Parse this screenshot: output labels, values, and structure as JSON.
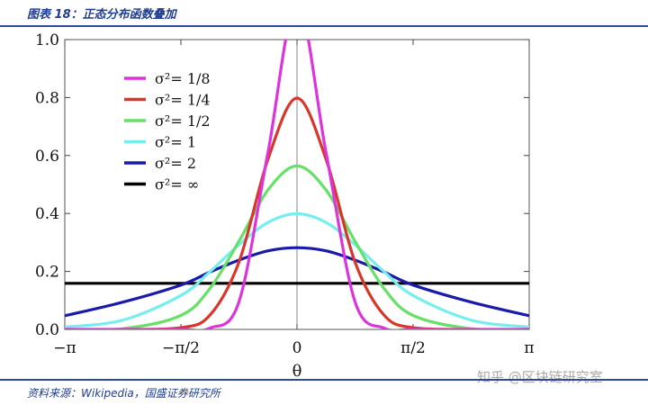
{
  "header": {
    "title": "图表 18：正态分布函数叠加"
  },
  "footer": {
    "source": "资料来源：Wikipedia，国盛证券研究所"
  },
  "watermark": {
    "text": "知乎 @区块链研究室"
  },
  "colors": {
    "header_rule": "#2d4a9a",
    "header_text": "#1f3d8f"
  },
  "chart_data": {
    "type": "line",
    "title": "",
    "xlabel": "θ",
    "ylabel": "",
    "xlim": [
      -3.14159,
      3.14159
    ],
    "ylim": [
      0,
      1.0
    ],
    "x_ticks": [
      {
        "value": -3.14159,
        "label": "−π"
      },
      {
        "value": -1.5708,
        "label": "−π/2"
      },
      {
        "value": 0,
        "label": "0"
      },
      {
        "value": 1.5708,
        "label": "π/2"
      },
      {
        "value": 3.14159,
        "label": "π"
      }
    ],
    "y_ticks": [
      {
        "value": 0.0,
        "label": "0.0"
      },
      {
        "value": 0.2,
        "label": "0.2"
      },
      {
        "value": 0.4,
        "label": "0.4"
      },
      {
        "value": 0.6,
        "label": "0.6"
      },
      {
        "value": 0.8,
        "label": "0.8"
      },
      {
        "value": 1.0,
        "label": "1.0"
      }
    ],
    "grid": false,
    "legend_position": "top-left",
    "x": [
      -3.14159,
      -2.35619,
      -1.5708,
      -1.1781,
      -0.7854,
      -0.3927,
      0,
      0.3927,
      0.7854,
      1.1781,
      1.5708,
      2.35619,
      3.14159
    ],
    "series": [
      {
        "name": "σ²= 1/8",
        "color": "#dd33dd",
        "values": [
          0.0,
          0.0,
          0.0,
          0.0045,
          0.095,
          0.61,
          1.128,
          0.61,
          0.095,
          0.0045,
          0.0,
          0.0,
          0.0
        ]
      },
      {
        "name": "σ²= 1/4",
        "color": "#d9362b",
        "values": [
          0.0,
          0.0,
          0.0059,
          0.049,
          0.232,
          0.587,
          0.798,
          0.587,
          0.232,
          0.049,
          0.0059,
          0.0,
          0.0
        ]
      },
      {
        "name": "σ²= 1/2",
        "color": "#66e066",
        "values": [
          0.0,
          0.0024,
          0.048,
          0.141,
          0.304,
          0.481,
          0.564,
          0.481,
          0.304,
          0.141,
          0.048,
          0.0024,
          0.0
        ]
      },
      {
        "name": "σ²= 1",
        "color": "#77eeee",
        "values": [
          0.0077,
          0.032,
          0.117,
          0.199,
          0.292,
          0.369,
          0.399,
          0.369,
          0.292,
          0.199,
          0.117,
          0.032,
          0.0077
        ]
      },
      {
        "name": "σ²= 2",
        "color": "#1a1aaa",
        "values": [
          0.047,
          0.094,
          0.153,
          0.198,
          0.239,
          0.271,
          0.282,
          0.271,
          0.239,
          0.198,
          0.153,
          0.094,
          0.047
        ]
      },
      {
        "name": "σ²= ∞",
        "color": "#000000",
        "values": [
          0.159,
          0.159,
          0.159,
          0.159,
          0.159,
          0.159,
          0.159,
          0.159,
          0.159,
          0.159,
          0.159,
          0.159,
          0.159
        ]
      }
    ]
  }
}
